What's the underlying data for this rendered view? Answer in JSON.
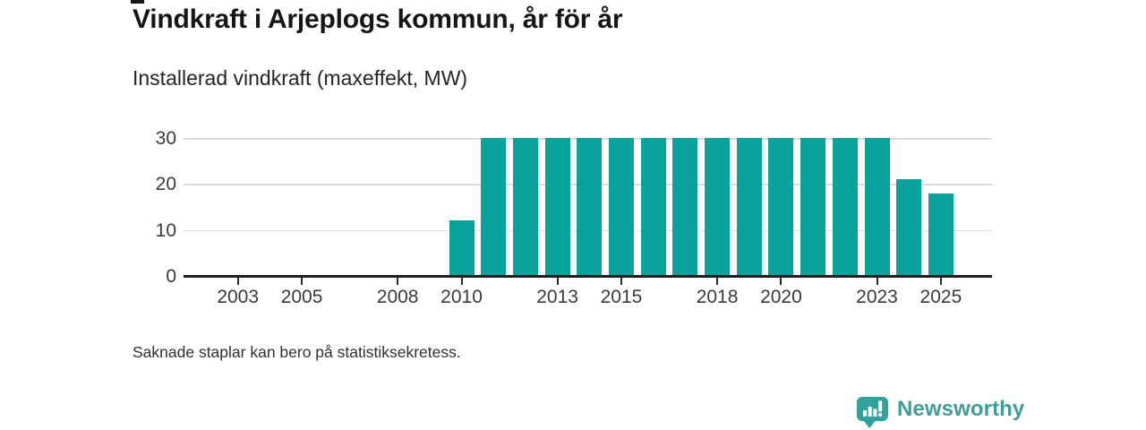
{
  "header": {
    "title": "Vindkraft i Arjeplogs kommun, år för år",
    "subtitle": "Installerad vindkraft (maxeffekt, MW)"
  },
  "footer": {
    "note": "Saknade staplar kan bero på statistiksekretess.",
    "brand": "Newsworthy",
    "logo_icon": "bar-chart-exclamation-pin-icon"
  },
  "colors": {
    "bar": "#0aa39b",
    "brand_icon": "#2ea29b",
    "brand_text": "#3f9e99",
    "axis": "#1f1f1f",
    "grid": "#dcdcdc",
    "tick_text": "#3a3a3a"
  },
  "chart_data": {
    "type": "bar",
    "title": "Vindkraft i Arjeplogs kommun, år för år",
    "subtitle": "Installerad vindkraft (maxeffekt, MW)",
    "ylabel": "Installerad vindkraft (maxeffekt, MW)",
    "xlabel": "",
    "x": [
      2010,
      2011,
      2012,
      2013,
      2014,
      2015,
      2016,
      2017,
      2018,
      2019,
      2020,
      2021,
      2022,
      2023,
      2024,
      2025
    ],
    "values": [
      12,
      30,
      30,
      30,
      30,
      30,
      30,
      30,
      30,
      30,
      30,
      30,
      30,
      30,
      21,
      18
    ],
    "x_ticks": [
      2003,
      2005,
      2008,
      2010,
      2013,
      2015,
      2018,
      2020,
      2023,
      2025
    ],
    "y_ticks": [
      0,
      10,
      20,
      30
    ],
    "xlim": [
      2001.3,
      2026.6
    ],
    "ylim": [
      0,
      30
    ],
    "grid": "horizontal",
    "legend": "none",
    "unit": "MW",
    "footnote": "Saknade staplar kan bero på statistiksekretess."
  }
}
